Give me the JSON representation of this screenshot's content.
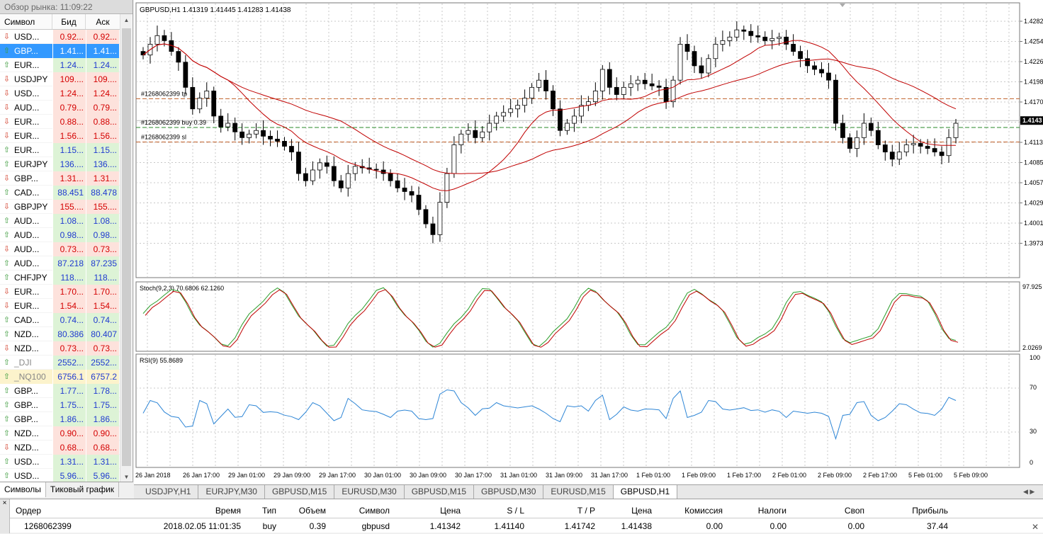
{
  "market_watch": {
    "title": "Обзор рынка: 11:09:22",
    "col_symbol": "Символ",
    "col_bid": "Бид",
    "col_ask": "Аск",
    "rows": [
      {
        "symbol": "USD...",
        "bid": "0.92...",
        "ask": "0.92...",
        "dir": "dn",
        "color": "red"
      },
      {
        "symbol": "GBP...",
        "bid": "1.41...",
        "ask": "1.41...",
        "dir": "up",
        "color": "blue",
        "selected": true
      },
      {
        "symbol": "EUR...",
        "bid": "1.24...",
        "ask": "1.24...",
        "dir": "up",
        "color": "blue"
      },
      {
        "symbol": "USDJPY",
        "bid": "109....",
        "ask": "109....",
        "dir": "dn",
        "color": "red"
      },
      {
        "symbol": "USD...",
        "bid": "1.24...",
        "ask": "1.24...",
        "dir": "dn",
        "color": "red"
      },
      {
        "symbol": "AUD...",
        "bid": "0.79...",
        "ask": "0.79...",
        "dir": "dn",
        "color": "red"
      },
      {
        "symbol": "EUR...",
        "bid": "0.88...",
        "ask": "0.88...",
        "dir": "dn",
        "color": "red"
      },
      {
        "symbol": "EUR...",
        "bid": "1.56...",
        "ask": "1.56...",
        "dir": "dn",
        "color": "red"
      },
      {
        "symbol": "EUR...",
        "bid": "1.15...",
        "ask": "1.15...",
        "dir": "up",
        "color": "blue"
      },
      {
        "symbol": "EURJPY",
        "bid": "136....",
        "ask": "136....",
        "dir": "up",
        "color": "blue"
      },
      {
        "symbol": "GBP...",
        "bid": "1.31...",
        "ask": "1.31...",
        "dir": "dn",
        "color": "red"
      },
      {
        "symbol": "CAD...",
        "bid": "88.451",
        "ask": "88.478",
        "dir": "up",
        "color": "blue"
      },
      {
        "symbol": "GBPJPY",
        "bid": "155....",
        "ask": "155....",
        "dir": "dn",
        "color": "red"
      },
      {
        "symbol": "AUD...",
        "bid": "1.08...",
        "ask": "1.08...",
        "dir": "up",
        "color": "blue"
      },
      {
        "symbol": "AUD...",
        "bid": "0.98...",
        "ask": "0.98...",
        "dir": "up",
        "color": "blue"
      },
      {
        "symbol": "AUD...",
        "bid": "0.73...",
        "ask": "0.73...",
        "dir": "dn",
        "color": "red"
      },
      {
        "symbol": "AUD...",
        "bid": "87.218",
        "ask": "87.235",
        "dir": "up",
        "color": "blue"
      },
      {
        "symbol": "CHFJPY",
        "bid": "118....",
        "ask": "118....",
        "dir": "up",
        "color": "blue"
      },
      {
        "symbol": "EUR...",
        "bid": "1.70...",
        "ask": "1.70...",
        "dir": "dn",
        "color": "red"
      },
      {
        "symbol": "EUR...",
        "bid": "1.54...",
        "ask": "1.54...",
        "dir": "dn",
        "color": "red"
      },
      {
        "symbol": "CAD...",
        "bid": "0.74...",
        "ask": "0.74...",
        "dir": "up",
        "color": "blue"
      },
      {
        "symbol": "NZD...",
        "bid": "80.386",
        "ask": "80.407",
        "dir": "up",
        "color": "blue"
      },
      {
        "symbol": "NZD...",
        "bid": "0.73...",
        "ask": "0.73...",
        "dir": "dn",
        "color": "red"
      },
      {
        "symbol": "_DJI",
        "bid": "2552...",
        "ask": "2552...",
        "dir": "up",
        "color": "blue",
        "gray": true
      },
      {
        "symbol": "_NQ100",
        "bid": "6756.1",
        "ask": "6757.2",
        "dir": "up",
        "color": "blue",
        "gray": true,
        "highlight": true
      },
      {
        "symbol": "GBP...",
        "bid": "1.77...",
        "ask": "1.78...",
        "dir": "up",
        "color": "blue"
      },
      {
        "symbol": "GBP...",
        "bid": "1.75...",
        "ask": "1.75...",
        "dir": "up",
        "color": "blue"
      },
      {
        "symbol": "GBP...",
        "bid": "1.86...",
        "ask": "1.86...",
        "dir": "up",
        "color": "blue"
      },
      {
        "symbol": "NZD...",
        "bid": "0.90...",
        "ask": "0.90...",
        "dir": "up",
        "color": "red"
      },
      {
        "symbol": "NZD...",
        "bid": "0.68...",
        "ask": "0.68...",
        "dir": "dn",
        "color": "red"
      },
      {
        "symbol": "USD...",
        "bid": "1.31...",
        "ask": "1.31...",
        "dir": "up",
        "color": "blue"
      },
      {
        "symbol": "USD...",
        "bid": "5.96...",
        "ask": "5.96...",
        "dir": "up",
        "color": "blue"
      }
    ],
    "tabs": [
      "Символы",
      "Тиковый график"
    ]
  },
  "chart": {
    "header": "GBPUSD,H1  1.41319 1.41445 1.41283 1.41438",
    "price_labels": [
      "1.4282",
      "1.4254",
      "1.4226",
      "1.4198",
      "1.4170",
      "1.4143",
      "1.4113",
      "1.4085",
      "1.4057",
      "1.4029",
      "1.4001",
      "1.3973"
    ],
    "current_price": "1.4143",
    "order_labels": [
      "#1268062399 tp",
      "#1268062399 buy 0.39",
      "#1268062399 sl"
    ],
    "stoch_header": "Stoch(9,2,3) 70.6806 62.1260",
    "stoch_labels": [
      "97.925",
      "2.0269"
    ],
    "rsi_header": "RSI(9) 55.8689",
    "rsi_labels": [
      "100",
      "70",
      "30",
      "0"
    ],
    "time_labels": [
      "26 Jan 2018",
      "26 Jan 17:00",
      "29 Jan 01:00",
      "29 Jan 09:00",
      "29 Jan 17:00",
      "30 Jan 01:00",
      "30 Jan 09:00",
      "30 Jan 17:00",
      "31 Jan 01:00",
      "31 Jan 09:00",
      "31 Jan 17:00",
      "1 Feb 01:00",
      "1 Feb 09:00",
      "1 Feb 17:00",
      "2 Feb 01:00",
      "2 Feb 09:00",
      "2 Feb 17:00",
      "5 Feb 01:00",
      "5 Feb 09:00"
    ],
    "colors": {
      "bull": "#ffffff",
      "bear": "#000000",
      "ma": "#c00000",
      "stoch_main": "#2a9d2a",
      "stoch_signal": "#c00000",
      "rsi": "#2e86d6",
      "tp": "#c0602a",
      "buy": "#2a8a2a",
      "sl": "#c0602a",
      "grid": "#c8c8c8"
    }
  },
  "chart_tabs": [
    "USDJPY,H1",
    "EURJPY,M30",
    "GBPUSD,M15",
    "EURUSD,M30",
    "GBPUSD,M15",
    "GBPUSD,M30",
    "EURUSD,M15",
    "GBPUSD,H1"
  ],
  "chart_tabs_active": "GBPUSD,H1",
  "terminal": {
    "headers": [
      "Ордер",
      "Время",
      "Тип",
      "Объем",
      "Символ",
      "Цена",
      "S / L",
      "T / P",
      "Цена",
      "Комиссия",
      "Налоги",
      "Своп",
      "Прибыль"
    ],
    "rows": [
      [
        "1268062399",
        "2018.02.05 11:01:35",
        "buy",
        "0.39",
        "gbpusd",
        "1.41342",
        "1.41140",
        "1.41742",
        "1.41438",
        "0.00",
        "0.00",
        "0.00",
        "37.44"
      ]
    ]
  }
}
